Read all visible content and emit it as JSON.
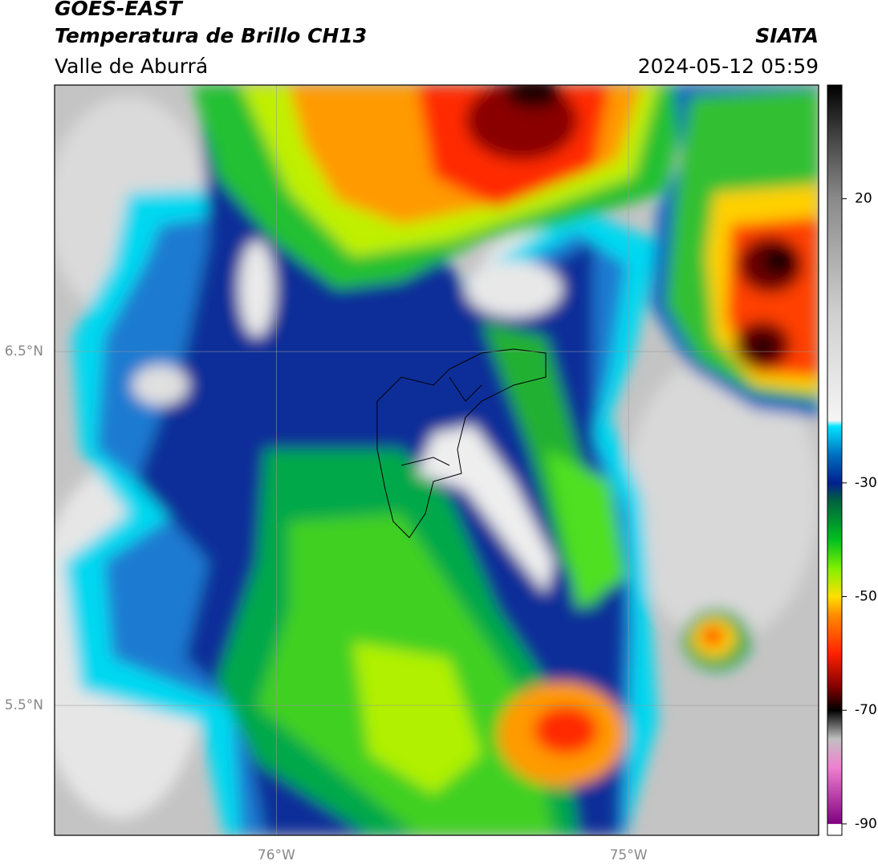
{
  "header": {
    "title": "GOES-EAST",
    "subtitle": "Temperatura de Brillo CH13",
    "source": "SIATA",
    "region": "Valle de Aburrá",
    "datetime": "2024-05-12 05:59"
  },
  "map": {
    "lon_lim": [
      -76.63,
      -74.46
    ],
    "lat_lim": [
      5.133,
      7.253
    ],
    "lat_ticks": [
      {
        "value": 6.5,
        "label": "6.5°N"
      },
      {
        "value": 5.5,
        "label": "5.5°N"
      }
    ],
    "lon_ticks": [
      {
        "value": -76,
        "label": "76°W"
      },
      {
        "value": -75,
        "label": "75°W"
      }
    ],
    "colorbar": {
      "lim": [
        -92,
        40
      ],
      "ticks": [
        20,
        -30,
        -50,
        -70,
        -90
      ],
      "stops": [
        {
          "value": 40,
          "color": "#000000"
        },
        {
          "value": 30,
          "color": "#4a4a4a"
        },
        {
          "value": 20,
          "color": "#8a8a8a"
        },
        {
          "value": 0,
          "color": "#cfcfcf"
        },
        {
          "value": -19,
          "color": "#f5f5f5"
        },
        {
          "value": -20,
          "color": "#00e5ff"
        },
        {
          "value": -25,
          "color": "#0070c0"
        },
        {
          "value": -30,
          "color": "#001f8f"
        },
        {
          "value": -33,
          "color": "#006040"
        },
        {
          "value": -40,
          "color": "#00c020"
        },
        {
          "value": -45,
          "color": "#80f000"
        },
        {
          "value": -50,
          "color": "#ffe000"
        },
        {
          "value": -53,
          "color": "#ff9000"
        },
        {
          "value": -60,
          "color": "#ff2000"
        },
        {
          "value": -66,
          "color": "#800000"
        },
        {
          "value": -70,
          "color": "#000000"
        },
        {
          "value": -75,
          "color": "#c0c0c0"
        },
        {
          "value": -80,
          "color": "#f080d0"
        },
        {
          "value": -90,
          "color": "#800080"
        },
        {
          "value": -90,
          "color": "#ffffff"
        },
        {
          "value": -92,
          "color": "#ffffff"
        }
      ]
    }
  }
}
